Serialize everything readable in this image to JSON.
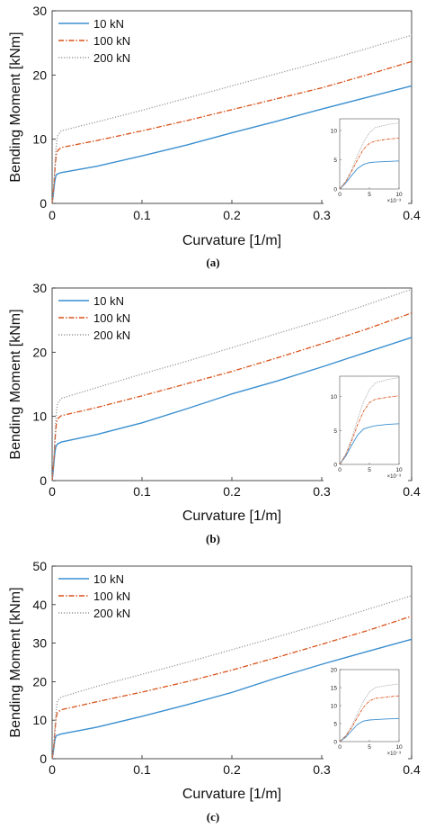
{
  "colors": {
    "s10": "#3a8fd0",
    "s100": "#d9521a",
    "s200": "#9a9a9a",
    "axis": "#222222",
    "grid": "#ffffff"
  },
  "chart_data": [
    {
      "type": "line",
      "caption": "(a)",
      "xlabel": "Curvature [1/m]",
      "ylabel": "Bending Moment [kNm]",
      "xlim": [
        0,
        0.4
      ],
      "ylim": [
        0,
        30
      ],
      "xticks": [
        0,
        0.1,
        0.2,
        0.3,
        0.4
      ],
      "xtick_labels": [
        "0",
        "0.1",
        "0.2",
        "0.3",
        "0.4"
      ],
      "yticks": [
        0,
        10,
        20,
        30
      ],
      "ytick_labels": [
        "0",
        "10",
        "20",
        "30"
      ],
      "legend_position": "top-left",
      "series": [
        {
          "name": "10 kN",
          "style": "solid",
          "x": [
            0,
            0.001,
            0.002,
            0.003,
            0.004,
            0.005,
            0.006,
            0.01,
            0.05,
            0.1,
            0.15,
            0.2,
            0.25,
            0.3,
            0.35,
            0.4
          ],
          "y": [
            0,
            1.0,
            2.3,
            3.5,
            4.2,
            4.5,
            4.6,
            4.8,
            5.8,
            7.4,
            9.1,
            11.0,
            12.8,
            14.7,
            16.5,
            18.3
          ]
        },
        {
          "name": "100 kN",
          "style": "dashdot",
          "x": [
            0,
            0.001,
            0.002,
            0.003,
            0.004,
            0.005,
            0.006,
            0.01,
            0.05,
            0.1,
            0.15,
            0.2,
            0.25,
            0.3,
            0.35,
            0.4
          ],
          "y": [
            0,
            1.2,
            3.0,
            5.0,
            6.8,
            7.8,
            8.2,
            8.7,
            9.8,
            11.3,
            12.9,
            14.6,
            16.3,
            18.0,
            20.0,
            22.1
          ]
        },
        {
          "name": "200 kN",
          "style": "dotted",
          "x": [
            0,
            0.001,
            0.002,
            0.003,
            0.004,
            0.005,
            0.006,
            0.01,
            0.05,
            0.1,
            0.15,
            0.2,
            0.25,
            0.3,
            0.35,
            0.4
          ],
          "y": [
            0,
            1.3,
            3.3,
            5.8,
            8.0,
            9.6,
            10.5,
            11.3,
            12.7,
            14.5,
            16.4,
            18.3,
            20.2,
            22.1,
            24.1,
            26.2
          ]
        }
      ],
      "inset": {
        "xlim": [
          0,
          10
        ],
        "ylim": [
          0,
          12
        ],
        "xticks": [
          0,
          5,
          10
        ],
        "xtick_labels": [
          "0",
          "5",
          "10"
        ],
        "yticks": [
          0,
          5,
          10
        ],
        "ytick_labels": [
          "0",
          "5",
          "10"
        ],
        "x_multiplier": "×10⁻³",
        "series": [
          {
            "x": [
              0,
              1,
              2,
              3,
              4,
              5,
              6,
              8,
              10
            ],
            "y": [
              0,
              1.0,
              2.3,
              3.5,
              4.2,
              4.5,
              4.6,
              4.7,
              4.8
            ]
          },
          {
            "x": [
              0,
              1,
              2,
              3,
              4,
              5,
              6,
              8,
              10
            ],
            "y": [
              0,
              1.2,
              3.0,
              5.0,
              6.8,
              7.8,
              8.2,
              8.5,
              8.7
            ]
          },
          {
            "x": [
              0,
              1,
              2,
              3,
              4,
              5,
              6,
              8,
              10
            ],
            "y": [
              0,
              1.3,
              3.3,
              5.8,
              8.0,
              9.6,
              10.5,
              11.0,
              11.3
            ]
          }
        ]
      }
    },
    {
      "type": "line",
      "caption": "(b)",
      "xlabel": "Curvature [1/m]",
      "ylabel": "Bending Moment [kNm]",
      "xlim": [
        0,
        0.4
      ],
      "ylim": [
        0,
        30
      ],
      "xticks": [
        0,
        0.1,
        0.2,
        0.3,
        0.4
      ],
      "xtick_labels": [
        "0",
        "0.1",
        "0.2",
        "0.3",
        "0.4"
      ],
      "yticks": [
        0,
        10,
        20,
        30
      ],
      "ytick_labels": [
        "0",
        "10",
        "20",
        "30"
      ],
      "legend_position": "top-left",
      "series": [
        {
          "name": "10 kN",
          "style": "solid",
          "x": [
            0,
            0.001,
            0.002,
            0.003,
            0.004,
            0.005,
            0.006,
            0.01,
            0.05,
            0.1,
            0.15,
            0.2,
            0.25,
            0.3,
            0.35,
            0.4
          ],
          "y": [
            0,
            1.2,
            2.8,
            4.3,
            5.2,
            5.5,
            5.7,
            6.0,
            7.2,
            9.0,
            11.2,
            13.5,
            15.5,
            17.7,
            20.0,
            22.3
          ]
        },
        {
          "name": "100 kN",
          "style": "dashdot",
          "x": [
            0,
            0.001,
            0.002,
            0.003,
            0.004,
            0.005,
            0.006,
            0.01,
            0.05,
            0.1,
            0.15,
            0.2,
            0.25,
            0.3,
            0.35,
            0.4
          ],
          "y": [
            0,
            1.4,
            3.4,
            5.8,
            7.8,
            9.1,
            9.6,
            10.1,
            11.4,
            13.2,
            15.1,
            17.0,
            19.1,
            21.3,
            23.6,
            26.1
          ]
        },
        {
          "name": "200 kN",
          "style": "dotted",
          "x": [
            0,
            0.001,
            0.002,
            0.003,
            0.004,
            0.005,
            0.006,
            0.01,
            0.05,
            0.1,
            0.15,
            0.2,
            0.25,
            0.3,
            0.35,
            0.4
          ],
          "y": [
            0,
            1.5,
            3.8,
            6.6,
            9.2,
            11.0,
            12.0,
            12.8,
            14.5,
            16.6,
            18.6,
            20.7,
            22.9,
            25.0,
            27.4,
            29.8
          ]
        }
      ],
      "inset": {
        "xlim": [
          0,
          10
        ],
        "ylim": [
          0,
          13
        ],
        "xticks": [
          0,
          5,
          10
        ],
        "xtick_labels": [
          "0",
          "5",
          "10"
        ],
        "yticks": [
          0,
          5,
          10
        ],
        "ytick_labels": [
          "0",
          "5",
          "10"
        ],
        "x_multiplier": "×10⁻³",
        "series": [
          {
            "x": [
              0,
              1,
              2,
              3,
              4,
              5,
              6,
              8,
              10
            ],
            "y": [
              0,
              1.2,
              2.8,
              4.3,
              5.2,
              5.5,
              5.7,
              5.9,
              6.0
            ]
          },
          {
            "x": [
              0,
              1,
              2,
              3,
              4,
              5,
              6,
              8,
              10
            ],
            "y": [
              0,
              1.4,
              3.4,
              5.8,
              7.8,
              9.1,
              9.6,
              9.9,
              10.1
            ]
          },
          {
            "x": [
              0,
              1,
              2,
              3,
              4,
              5,
              6,
              8,
              10
            ],
            "y": [
              0,
              1.5,
              3.8,
              6.6,
              9.2,
              11.0,
              12.0,
              12.5,
              12.8
            ]
          }
        ]
      }
    },
    {
      "type": "line",
      "caption": "(c)",
      "xlabel": "Curvature [1/m]",
      "ylabel": "Bending Moment [kNm]",
      "xlim": [
        0,
        0.4
      ],
      "ylim": [
        0,
        50
      ],
      "xticks": [
        0,
        0.1,
        0.2,
        0.3,
        0.4
      ],
      "xtick_labels": [
        "0",
        "0.1",
        "0.2",
        "0.3",
        "0.4"
      ],
      "yticks": [
        0,
        10,
        20,
        30,
        40,
        50
      ],
      "ytick_labels": [
        "0",
        "10",
        "20",
        "30",
        "40",
        "50"
      ],
      "legend_position": "top-left",
      "series": [
        {
          "name": "10 kN",
          "style": "solid",
          "x": [
            0,
            0.001,
            0.002,
            0.003,
            0.004,
            0.005,
            0.006,
            0.01,
            0.05,
            0.1,
            0.15,
            0.2,
            0.25,
            0.3,
            0.35,
            0.4
          ],
          "y": [
            0,
            1.2,
            3.0,
            4.8,
            5.7,
            6.0,
            6.1,
            6.4,
            8.2,
            11.0,
            14.0,
            17.2,
            21.0,
            24.5,
            27.8,
            31.0
          ]
        },
        {
          "name": "100 kN",
          "style": "dashdot",
          "x": [
            0,
            0.001,
            0.002,
            0.003,
            0.004,
            0.005,
            0.006,
            0.01,
            0.05,
            0.1,
            0.15,
            0.2,
            0.25,
            0.3,
            0.35,
            0.4
          ],
          "y": [
            0,
            1.5,
            3.8,
            6.8,
            9.5,
            11.3,
            12.0,
            12.7,
            14.8,
            17.3,
            20.0,
            23.0,
            26.3,
            29.7,
            33.2,
            37.0
          ]
        },
        {
          "name": "200 kN",
          "style": "dotted",
          "x": [
            0,
            0.001,
            0.002,
            0.003,
            0.004,
            0.005,
            0.006,
            0.01,
            0.05,
            0.1,
            0.15,
            0.2,
            0.25,
            0.3,
            0.35,
            0.4
          ],
          "y": [
            0,
            1.7,
            4.3,
            7.8,
            11.2,
            13.8,
            15.0,
            16.0,
            18.8,
            21.9,
            25.0,
            28.3,
            31.6,
            35.0,
            38.7,
            42.3
          ]
        }
      ],
      "inset": {
        "xlim": [
          0,
          10
        ],
        "ylim": [
          0,
          20
        ],
        "xticks": [
          0,
          5,
          10
        ],
        "xtick_labels": [
          "0",
          "5",
          "10"
        ],
        "yticks": [
          0,
          5,
          10,
          15,
          20
        ],
        "ytick_labels": [
          "0",
          "5",
          "10",
          "15",
          "20"
        ],
        "x_multiplier": "×10⁻³",
        "series": [
          {
            "x": [
              0,
              1,
              2,
              3,
              4,
              5,
              6,
              8,
              10
            ],
            "y": [
              0,
              1.2,
              3.0,
              4.8,
              5.7,
              6.0,
              6.1,
              6.3,
              6.4
            ]
          },
          {
            "x": [
              0,
              1,
              2,
              3,
              4,
              5,
              6,
              8,
              10
            ],
            "y": [
              0,
              1.5,
              3.8,
              6.8,
              9.5,
              11.3,
              12.0,
              12.4,
              12.7
            ]
          },
          {
            "x": [
              0,
              1,
              2,
              3,
              4,
              5,
              6,
              8,
              10
            ],
            "y": [
              0,
              1.7,
              4.3,
              7.8,
              11.2,
              13.8,
              15.0,
              15.6,
              16.0
            ]
          }
        ]
      }
    }
  ]
}
